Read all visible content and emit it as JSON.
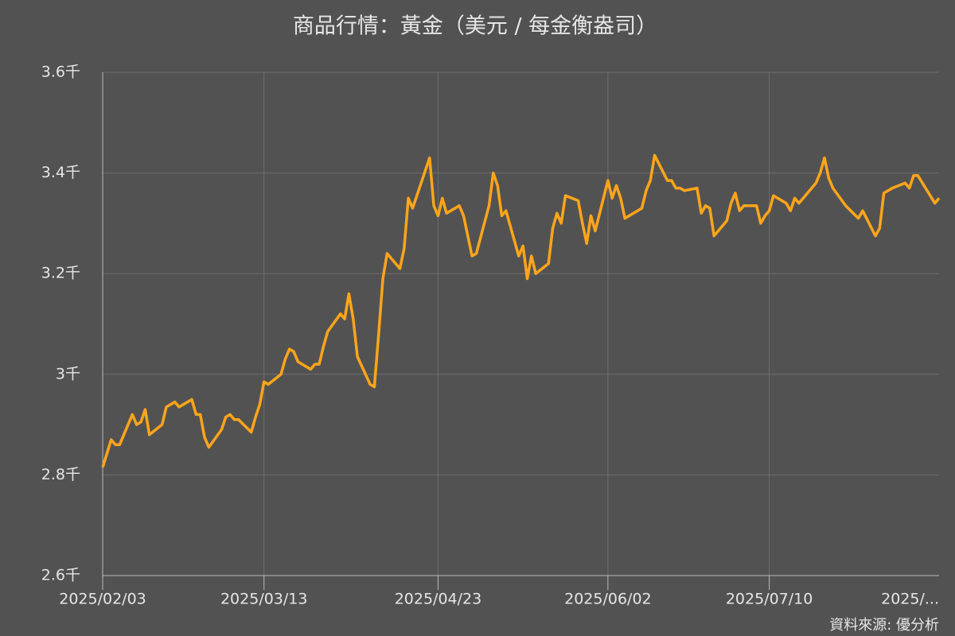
{
  "chart_data": {
    "type": "line",
    "title": "商品行情：黃金（美元 / 每金衡盎司）",
    "source": "資料來源: 優分析",
    "x": [
      "2025/02/03",
      "2025/02/05",
      "2025/02/06",
      "2025/02/07",
      "2025/02/10",
      "2025/02/11",
      "2025/02/12",
      "2025/02/13",
      "2025/02/14",
      "2025/02/17",
      "2025/02/18",
      "2025/02/19",
      "2025/02/20",
      "2025/02/21",
      "2025/02/24",
      "2025/02/25",
      "2025/02/26",
      "2025/02/27",
      "2025/02/28",
      "2025/03/03",
      "2025/03/04",
      "2025/03/05",
      "2025/03/06",
      "2025/03/07",
      "2025/03/10",
      "2025/03/11",
      "2025/03/12",
      "2025/03/13",
      "2025/03/14",
      "2025/03/17",
      "2025/03/18",
      "2025/03/19",
      "2025/03/20",
      "2025/03/21",
      "2025/03/24",
      "2025/03/25",
      "2025/03/26",
      "2025/03/27",
      "2025/03/28",
      "2025/03/31",
      "2025/04/01",
      "2025/04/02",
      "2025/04/03",
      "2025/04/04",
      "2025/04/07",
      "2025/04/08",
      "2025/04/09",
      "2025/04/10",
      "2025/04/11",
      "2025/04/14",
      "2025/04/15",
      "2025/04/16",
      "2025/04/17",
      "2025/04/21",
      "2025/04/22",
      "2025/04/23",
      "2025/04/24",
      "2025/04/25",
      "2025/04/28",
      "2025/04/29",
      "2025/04/30",
      "2025/05/01",
      "2025/05/02",
      "2025/05/05",
      "2025/05/06",
      "2025/05/07",
      "2025/05/08",
      "2025/05/09",
      "2025/05/12",
      "2025/05/13",
      "2025/05/14",
      "2025/05/15",
      "2025/05/16",
      "2025/05/19",
      "2025/05/20",
      "2025/05/21",
      "2025/05/22",
      "2025/05/23",
      "2025/05/26",
      "2025/05/27",
      "2025/05/28",
      "2025/05/29",
      "2025/05/30",
      "2025/06/02",
      "2025/06/03",
      "2025/06/04",
      "2025/06/05",
      "2025/06/06",
      "2025/06/09",
      "2025/06/10",
      "2025/06/11",
      "2025/06/12",
      "2025/06/13",
      "2025/06/16",
      "2025/06/17",
      "2025/06/18",
      "2025/06/19",
      "2025/06/20",
      "2025/06/23",
      "2025/06/24",
      "2025/06/25",
      "2025/06/26",
      "2025/06/27",
      "2025/06/30",
      "2025/07/01",
      "2025/07/02",
      "2025/07/03",
      "2025/07/04",
      "2025/07/07",
      "2025/07/08",
      "2025/07/09",
      "2025/07/10",
      "2025/07/11",
      "2025/07/14",
      "2025/07/15",
      "2025/07/16",
      "2025/07/17",
      "2025/07/21",
      "2025/07/22",
      "2025/07/23",
      "2025/07/24",
      "2025/07/25",
      "2025/07/28",
      "2025/07/31",
      "2025/08/01",
      "2025/08/04",
      "2025/08/05",
      "2025/08/06",
      "2025/08/08",
      "2025/08/11",
      "2025/08/12",
      "2025/08/13",
      "2025/08/14",
      "2025/08/18",
      "2025/08/19"
    ],
    "series": [
      {
        "name": "黃金",
        "color": "#ffa51a",
        "values": [
          2815,
          2870,
          2860,
          2860,
          2920,
          2900,
          2905,
          2930,
          2880,
          2900,
          2935,
          2940,
          2945,
          2935,
          2950,
          2920,
          2920,
          2875,
          2855,
          2890,
          2915,
          2920,
          2910,
          2910,
          2885,
          2915,
          2940,
          2985,
          2980,
          3000,
          3030,
          3050,
          3045,
          3025,
          3010,
          3020,
          3020,
          3055,
          3085,
          3120,
          3110,
          3160,
          3110,
          3035,
          2980,
          2975,
          3080,
          3190,
          3240,
          3210,
          3250,
          3350,
          3330,
          3430,
          3335,
          3315,
          3350,
          3320,
          3335,
          3315,
          3275,
          3235,
          3240,
          3335,
          3400,
          3375,
          3315,
          3325,
          3235,
          3255,
          3190,
          3235,
          3200,
          3220,
          3290,
          3320,
          3300,
          3355,
          3345,
          3300,
          3260,
          3315,
          3285,
          3385,
          3350,
          3375,
          3350,
          3310,
          3325,
          3330,
          3365,
          3385,
          3435,
          3385,
          3385,
          3370,
          3370,
          3365,
          3370,
          3320,
          3335,
          3330,
          3275,
          3305,
          3340,
          3360,
          3325,
          3335,
          3335,
          3300,
          3315,
          3325,
          3355,
          3340,
          3325,
          3350,
          3340,
          3380,
          3400,
          3430,
          3390,
          3370,
          3335,
          3310,
          3325,
          3275,
          3290,
          3360,
          3370,
          3380,
          3370,
          3395,
          3395,
          3340,
          3350
        ]
      }
    ],
    "xlim": [
      "2025/02/03",
      "2025/08/19"
    ],
    "xticks": [
      "2025/02/03",
      "2025/03/13",
      "2025/04/23",
      "2025/06/02",
      "2025/07/10",
      {
        "value": "2025/08/21",
        "label": "2025/..."
      }
    ],
    "ylim": [
      2600,
      3600
    ],
    "yticks": [
      {
        "value": 2600,
        "label": "2.6千"
      },
      {
        "value": 2800,
        "label": "2.8千"
      },
      {
        "value": 3000,
        "label": "3千"
      },
      {
        "value": 3200,
        "label": "3.2千"
      },
      {
        "value": 3400,
        "label": "3.4千"
      },
      {
        "value": 3600,
        "label": "3.6千"
      }
    ],
    "grid": true
  }
}
